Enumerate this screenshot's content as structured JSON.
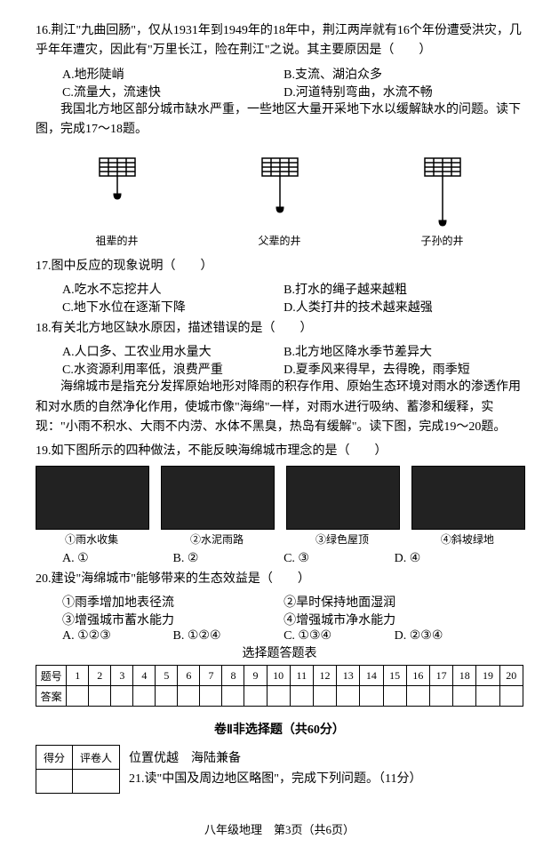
{
  "q16": {
    "text": "16.荆江\"九曲回肠\"，仅从1931年到1949年的18年中，荆江两岸就有16个年份遭受洪灾，几乎年年遭灾，因此有\"万里长江，险在荆江\"之说。其主要原因是（　　）",
    "a": "A.地形陡峭",
    "b": "B.支流、湖泊众多",
    "c": "C.流量大，流速快",
    "d": "D.河道特别弯曲，水流不畅"
  },
  "ctx17": "我国北方地区部分城市缺水严重，一些地区大量开采地下水以缓解缺水的问题。读下图，完成17～18题。",
  "wells": {
    "a": "祖辈的井",
    "b": "父辈的井",
    "c": "子孙的井"
  },
  "q17": {
    "text": "17.图中反应的现象说明（　　）",
    "a": "A.吃水不忘挖井人",
    "b": "B.打水的绳子越来越粗",
    "c": "C.地下水位在逐渐下降",
    "d": "D.人类打井的技术越来越强"
  },
  "q18": {
    "text": "18.有关北方地区缺水原因，描述错误的是（　　）",
    "a": "A.人口多、工农业用水量大",
    "b": "B.北方地区降水季节差异大",
    "c": "C.水资源利用率低，浪费严重",
    "d": "D.夏季风来得早，去得晚，雨季短"
  },
  "ctx19": "海绵城市是指充分发挥原始地形对降雨的积存作用、原始生态环境对雨水的渗透作用和对水质的自然净化作用，使城市像\"海绵\"一样，对雨水进行吸纳、蓄渗和缓释，实现：\"小雨不积水、大雨不内涝、水体不黑臭，热岛有缓解\"。读下图，完成19～20题。",
  "q19": {
    "text": "19.如下图所示的四种做法，不能反映海绵城市理念的是（　　）",
    "img1": "①雨水收集",
    "img2": "②水泥雨路",
    "img3": "③绿色屋顶",
    "img4": "④斜坡绿地",
    "a": "A. ①",
    "b": "B. ②",
    "c": "C. ③",
    "d": "D. ④"
  },
  "q20": {
    "text": "20.建设\"海绵城市\"能够带来的生态效益是（　　）",
    "o1": "①雨季增加地表径流",
    "o2": "②旱时保持地面湿润",
    "o3": "③增强城市蓄水能力",
    "o4": "④增强城市净水能力",
    "a": "A. ①②③",
    "b": "B. ①②④",
    "c": "C. ①③④",
    "d": "D. ②③④"
  },
  "ansTable": {
    "title": "选择题答题表",
    "rowLabel": "题号",
    "ansLabel": "答案",
    "nums": [
      "1",
      "2",
      "3",
      "4",
      "5",
      "6",
      "7",
      "8",
      "9",
      "10",
      "11",
      "12",
      "13",
      "14",
      "15",
      "16",
      "17",
      "18",
      "19",
      "20"
    ]
  },
  "section2": "卷Ⅱ非选择题（共60分）",
  "scoreBox": {
    "a": "得分",
    "b": "评卷人"
  },
  "subtitle": "位置优越　海陆兼备",
  "q21": "21.读\"中国及周边地区略图\"，完成下列问题。（11分）",
  "footer": "八年级地理　第3页（共6页）"
}
